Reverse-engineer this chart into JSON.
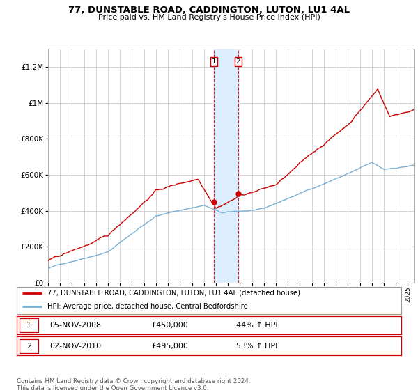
{
  "title1": "77, DUNSTABLE ROAD, CADDINGTON, LUTON, LU1 4AL",
  "title2": "Price paid vs. HM Land Registry's House Price Index (HPI)",
  "ytick_vals": [
    0,
    200000,
    400000,
    600000,
    800000,
    1000000,
    1200000
  ],
  "ylim": [
    0,
    1300000
  ],
  "xlim_start": 1995.0,
  "xlim_end": 2025.5,
  "legend_line1": "77, DUNSTABLE ROAD, CADDINGTON, LUTON, LU1 4AL (detached house)",
  "legend_line2": "HPI: Average price, detached house, Central Bedfordshire",
  "point1_label": "1",
  "point1_date": "05-NOV-2008",
  "point1_price": "£450,000",
  "point1_hpi": "44% ↑ HPI",
  "point1_x": 2008.846,
  "point1_y": 450000,
  "point2_label": "2",
  "point2_date": "02-NOV-2010",
  "point2_price": "£495,000",
  "point2_hpi": "53% ↑ HPI",
  "point2_x": 2010.846,
  "point2_y": 495000,
  "footer": "Contains HM Land Registry data © Crown copyright and database right 2024.\nThis data is licensed under the Open Government Licence v3.0.",
  "line_color_red": "#cc0000",
  "line_color_blue": "#7aafd4",
  "shade_color": "#ddeeff",
  "grid_color": "#cccccc",
  "background_color": "#ffffff"
}
